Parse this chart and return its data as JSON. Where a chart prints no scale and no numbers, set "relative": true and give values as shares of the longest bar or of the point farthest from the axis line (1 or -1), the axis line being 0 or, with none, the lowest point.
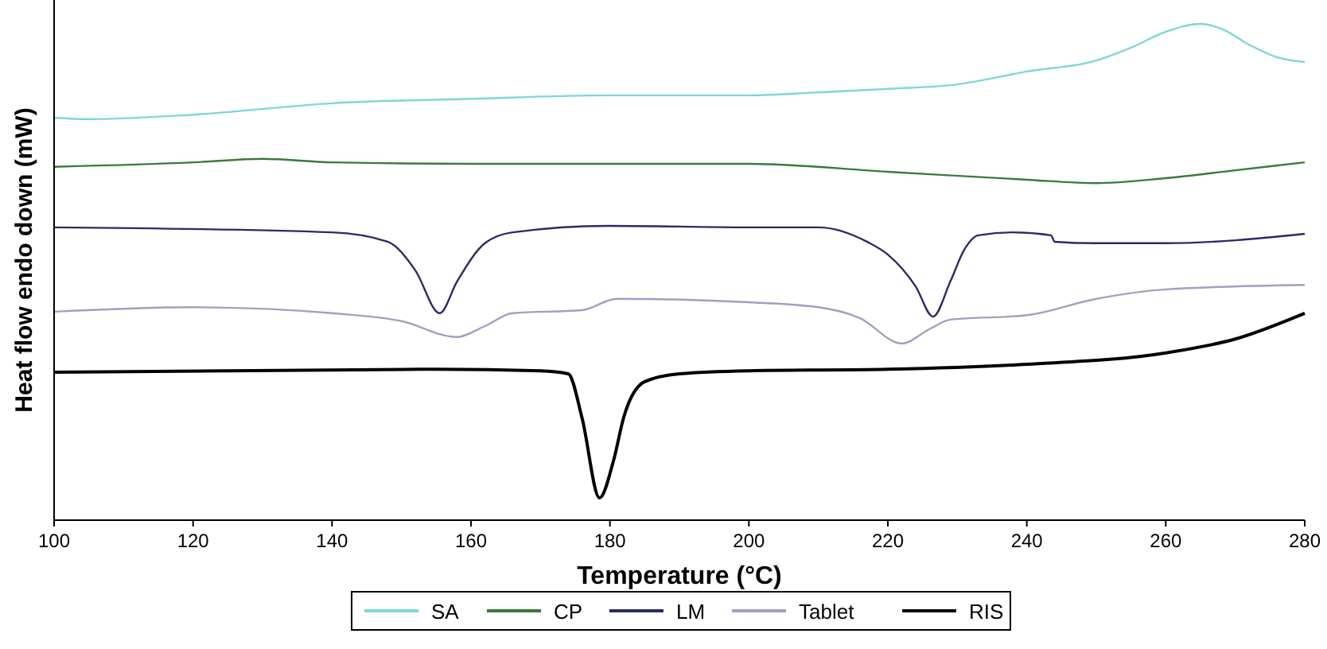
{
  "chart_data": {
    "type": "line",
    "relative": true,
    "xlabel": "Temperature (°C)",
    "ylabel": "Heat flow endo down (mW)",
    "xlim": [
      100,
      280
    ],
    "xticks": [
      100,
      120,
      140,
      160,
      180,
      200,
      220,
      240,
      260,
      280
    ],
    "legend": "bottom",
    "grid": false,
    "line_style": "solid",
    "series": [
      {
        "name": "SA",
        "color": "#7fd6d6",
        "x": [
          100,
          105,
          120,
          140,
          160,
          180,
          200,
          210,
          220,
          230,
          240,
          250,
          255,
          260,
          265,
          268,
          272,
          276,
          280
        ],
        "values": [
          0.811,
          0.808,
          0.817,
          0.84,
          0.849,
          0.856,
          0.856,
          0.862,
          0.869,
          0.878,
          0.904,
          0.926,
          0.952,
          0.984,
          1.0,
          0.99,
          0.958,
          0.933,
          0.923
        ]
      },
      {
        "name": "CP",
        "color": "#3a7a3a",
        "x": [
          100,
          120,
          130,
          140,
          160,
          180,
          200,
          220,
          240,
          250,
          260,
          270,
          280
        ],
        "values": [
          0.712,
          0.721,
          0.728,
          0.721,
          0.718,
          0.718,
          0.718,
          0.702,
          0.686,
          0.679,
          0.689,
          0.705,
          0.721
        ]
      },
      {
        "name": "LM",
        "color": "#2a2a6a",
        "x": [
          100,
          140,
          148,
          152,
          155.5,
          158,
          162,
          166,
          180,
          200,
          210,
          217,
          220,
          224,
          226.5,
          229,
          231,
          233,
          238,
          243.5,
          244,
          250,
          260,
          280
        ],
        "values": [
          0.59,
          0.58,
          0.561,
          0.503,
          0.417,
          0.481,
          0.558,
          0.58,
          0.593,
          0.59,
          0.59,
          0.561,
          0.535,
          0.471,
          0.41,
          0.481,
          0.545,
          0.574,
          0.58,
          0.574,
          0.561,
          0.558,
          0.558,
          0.577
        ]
      },
      {
        "name": "Tablet",
        "color": "#a0a0c0",
        "x": [
          100,
          120,
          140,
          150,
          158,
          162,
          166,
          176,
          181,
          200,
          210,
          216,
          222,
          226,
          229,
          240,
          250,
          260,
          280
        ],
        "values": [
          0.42,
          0.429,
          0.417,
          0.401,
          0.369,
          0.391,
          0.417,
          0.423,
          0.446,
          0.439,
          0.429,
          0.407,
          0.356,
          0.385,
          0.404,
          0.413,
          0.446,
          0.465,
          0.474
        ]
      },
      {
        "name": "RIS",
        "color": "#000000",
        "x": [
          100,
          155,
          170,
          174,
          176,
          178.5,
          180.5,
          182,
          185,
          190,
          200,
          220,
          240,
          260,
          270,
          280
        ],
        "values": [
          0.298,
          0.304,
          0.301,
          0.295,
          0.205,
          0.045,
          0.119,
          0.208,
          0.279,
          0.295,
          0.301,
          0.304,
          0.314,
          0.337,
          0.365,
          0.417
        ]
      }
    ]
  }
}
